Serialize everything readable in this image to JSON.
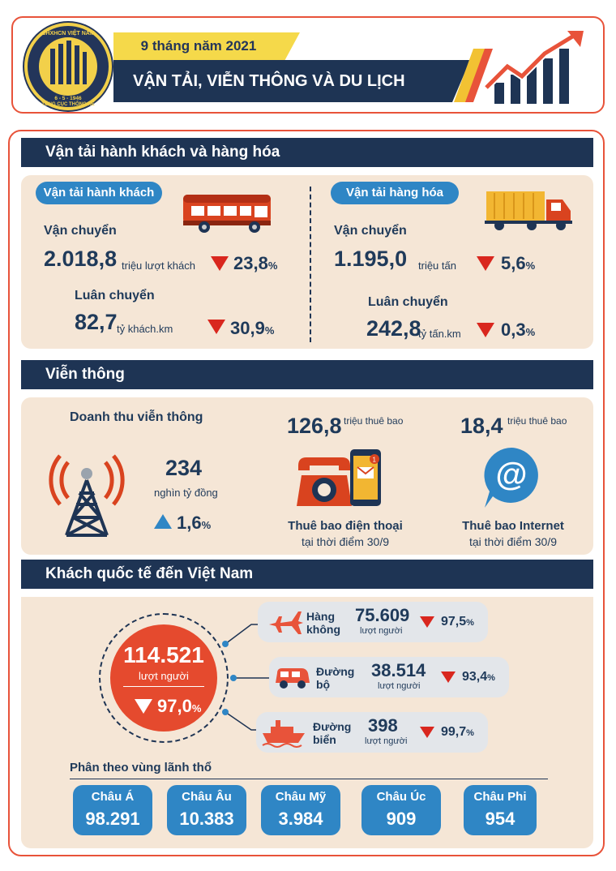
{
  "header": {
    "period": "9 tháng năm 2021",
    "title": "VẬN TẢI, VIỄN THÔNG VÀ DU LỊCH",
    "logo_top": "CHXHCN VIỆT NAM",
    "logo_date": "6 - 5 - 1946",
    "logo_bottom": "TỔNG CỤC THỐNG KÊ"
  },
  "transport": {
    "section_title": "Vận tải hành khách và hàng hóa",
    "passenger": {
      "pill": "Vận tải hành khách",
      "carry_label": "Vận chuyển",
      "carry_value": "2.018,8",
      "carry_unit": "triệu lượt khách",
      "carry_change": "23,8",
      "rotate_label": "Luân chuyển",
      "rotate_value": "82,7",
      "rotate_unit": "tỷ khách.km",
      "rotate_change": "30,9"
    },
    "cargo": {
      "pill": "Vận tải hàng hóa",
      "carry_label": "Vận chuyển",
      "carry_value": "1.195,0",
      "carry_unit": "triệu tấn",
      "carry_change": "5,6",
      "rotate_label": "Luân chuyển",
      "rotate_value": "242,8",
      "rotate_unit": "tỷ tấn.km",
      "rotate_change": "0,3"
    },
    "percent_sign": "%"
  },
  "telecom": {
    "section_title": "Viễn thông",
    "revenue_label": "Doanh thu viễn thông",
    "revenue_value": "234",
    "revenue_unit": "nghìn tỷ đồng",
    "revenue_change": "1,6",
    "phone_value": "126,8",
    "phone_unit": "triệu thuê bao",
    "phone_label": "Thuê bao điện thoại",
    "phone_sub": "tại thời điểm 30/9",
    "internet_value": "18,4",
    "internet_unit": "triệu thuê bao",
    "internet_label": "Thuê bao Internet",
    "internet_sub": "tại thời điểm 30/9",
    "notification_badge": "1"
  },
  "tourism": {
    "section_title": "Khách quốc tế đến Việt Nam",
    "total_value": "114.521",
    "total_unit": "lượt người",
    "total_change": "97,0",
    "modes": [
      {
        "name_1": "Hàng",
        "name_2": "không",
        "value": "75.609",
        "unit": "lượt người",
        "change": "97,5"
      },
      {
        "name_1": "Đường",
        "name_2": "bộ",
        "value": "38.514",
        "unit": "lượt người",
        "change": "93,4"
      },
      {
        "name_1": "Đường",
        "name_2": "biển",
        "value": "398",
        "unit": "lượt người",
        "change": "99,7"
      }
    ],
    "region_heading": "Phân theo vùng lãnh thổ",
    "regions": [
      {
        "name": "Châu Á",
        "value": "98.291"
      },
      {
        "name": "Châu Âu",
        "value": "10.383"
      },
      {
        "name": "Châu Mỹ",
        "value": "3.984"
      },
      {
        "name": "Châu Úc",
        "value": "909"
      },
      {
        "name": "Châu Phi",
        "value": "954"
      }
    ]
  },
  "colors": {
    "navy": "#1e3454",
    "accent_red": "#d9271e",
    "accent_orange": "#e8533a",
    "blue": "#2f86c5",
    "yellow": "#f5d94a",
    "beige": "#f5e6d6"
  }
}
